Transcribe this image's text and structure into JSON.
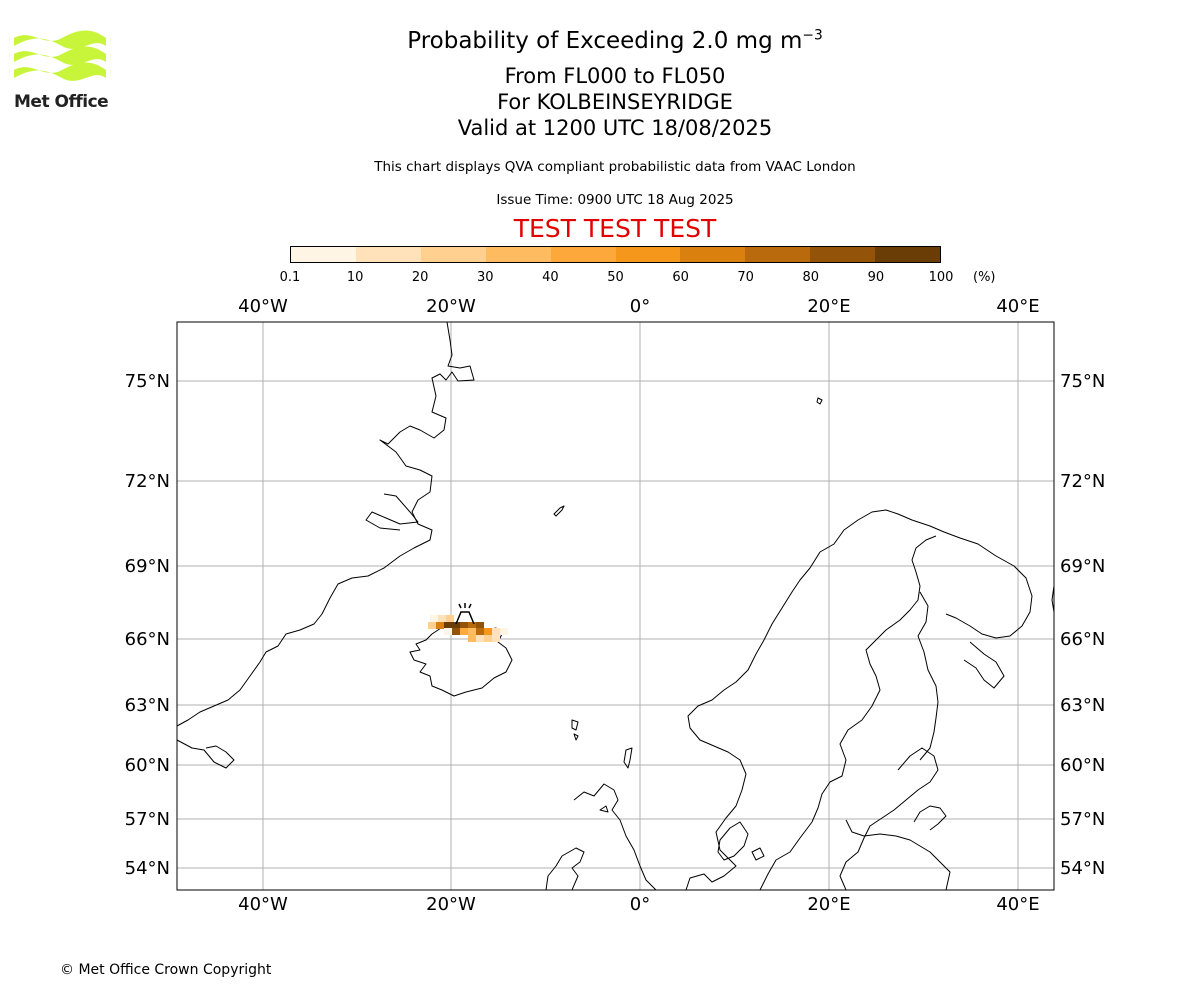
{
  "logo": {
    "text": "Met Office",
    "color": "#c8f53a"
  },
  "title": {
    "line1_prefix": "Probability of Exceeding 2.0 mg m",
    "line1_sup": "−3",
    "line2": "From FL000 to FL050",
    "line3": "For KOLBEINSEYRIDGE",
    "line4": "Valid at 1200 UTC 18/08/2025",
    "subtitle": "This chart displays QVA compliant probabilistic data from VAAC London",
    "issue_time": "Issue Time: 0900 UTC 18 Aug 2025",
    "test_banner": "TEST TEST TEST"
  },
  "colorbar": {
    "ticks": [
      "0.1",
      "10",
      "20",
      "30",
      "40",
      "50",
      "60",
      "70",
      "80",
      "90",
      "100"
    ],
    "unit": "(%)",
    "colors": [
      "#fff5e4",
      "#ffe2b9",
      "#ffd08f",
      "#ffbb60",
      "#fda83a",
      "#f5971b",
      "#d9800f",
      "#b86a0c",
      "#935409",
      "#6a3d06"
    ]
  },
  "map": {
    "projection": "polar stereographic",
    "lon_labels": [
      "40°W",
      "20°W",
      "0°",
      "20°E",
      "40°E"
    ],
    "lat_labels": [
      "75°N",
      "72°N",
      "69°N",
      "66°N",
      "63°N",
      "60°N",
      "57°N",
      "54°N"
    ],
    "volcano": {
      "name": "Kolbeinsey Ridge",
      "icon": "volcano-icon"
    },
    "ash_cells": [
      {
        "p": 5
      },
      {
        "p": 15
      },
      {
        "p": 25
      },
      {
        "p": 95
      },
      {
        "p": 85
      },
      {
        "p": 75
      },
      {
        "p": 85
      },
      {
        "p": 65
      },
      {
        "p": 95
      },
      {
        "p": 85
      },
      {
        "p": 45
      },
      {
        "p": 35
      },
      {
        "p": 75
      },
      {
        "p": 55
      },
      {
        "p": 25
      },
      {
        "p": 15
      },
      {
        "p": 5
      },
      {
        "p": 15
      },
      {
        "p": 25
      },
      {
        "p": 35
      },
      {
        "p": 15
      },
      {
        "p": 5
      }
    ]
  },
  "footer": {
    "copyright": "© Met Office Crown Copyright"
  }
}
